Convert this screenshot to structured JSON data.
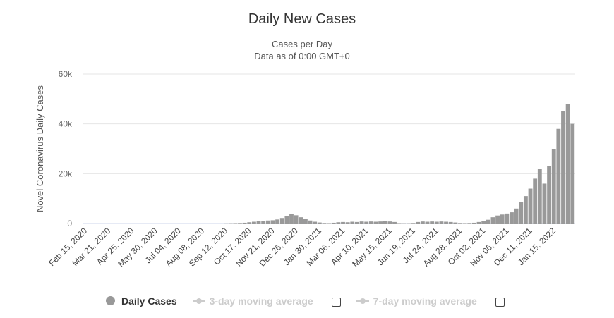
{
  "chart_data": {
    "type": "bar",
    "title": "Daily New Cases",
    "subtitle": [
      "Cases per Day",
      "Data as of 0:00 GMT+0"
    ],
    "ylabel": "Novel Coronavirus Daily Cases",
    "xlabel": "",
    "ylim": [
      0,
      60000
    ],
    "yticks": [
      {
        "v": 0,
        "label": "0"
      },
      {
        "v": 20000,
        "label": "20k"
      },
      {
        "v": 40000,
        "label": "40k"
      },
      {
        "v": 60000,
        "label": "60k"
      }
    ],
    "x_start": "Feb 15, 2020",
    "bin_days": 7,
    "total_days": 735,
    "xticks": [
      "Feb 15, 2020",
      "Mar 21, 2020",
      "Apr 25, 2020",
      "May 30, 2020",
      "Jul 04, 2020",
      "Aug 08, 2020",
      "Sep 12, 2020",
      "Oct 17, 2020",
      "Nov 21, 2020",
      "Dec 26, 2020",
      "Jan 30, 2021",
      "Mar 06, 2021",
      "Apr 10, 2021",
      "May 15, 2021",
      "Jun 19, 2021",
      "Jul 24, 2021",
      "Aug 28, 2021",
      "Oct 02, 2021",
      "Nov 06, 2021",
      "Dec 11, 2021",
      "Jan 15, 2022"
    ],
    "grid": true,
    "series": [
      {
        "name": "Daily Cases",
        "color": "#999999",
        "values": [
          0,
          0,
          0,
          0,
          0,
          0,
          0,
          0,
          0,
          0,
          0,
          0,
          0,
          0,
          0,
          0,
          0,
          0,
          0,
          0,
          0,
          0,
          0,
          0,
          0,
          0,
          0,
          0,
          0,
          0,
          50,
          100,
          150,
          200,
          300,
          500,
          700,
          900,
          1000,
          1200,
          1300,
          1600,
          2200,
          3000,
          3800,
          3300,
          2500,
          1800,
          1200,
          700,
          400,
          200,
          150,
          300,
          500,
          600,
          500,
          700,
          600,
          800,
          700,
          800,
          700,
          800,
          900,
          800,
          600,
          150,
          100,
          100,
          200,
          600,
          800,
          700,
          800,
          700,
          800,
          700,
          600,
          400,
          200,
          150,
          200,
          300,
          600,
          1000,
          1500,
          2500,
          3200,
          3600,
          4000,
          4500,
          6000,
          8500,
          11000,
          14000,
          18000,
          22000,
          16000,
          23000,
          30000,
          38000,
          45000,
          48000,
          40000
        ]
      }
    ],
    "legend": {
      "position": "bottom",
      "items": [
        {
          "label": "Daily Cases",
          "enabled": true
        },
        {
          "label": "3-day moving average",
          "enabled": false
        },
        {
          "label": "7-day moving average",
          "enabled": false
        }
      ]
    }
  }
}
